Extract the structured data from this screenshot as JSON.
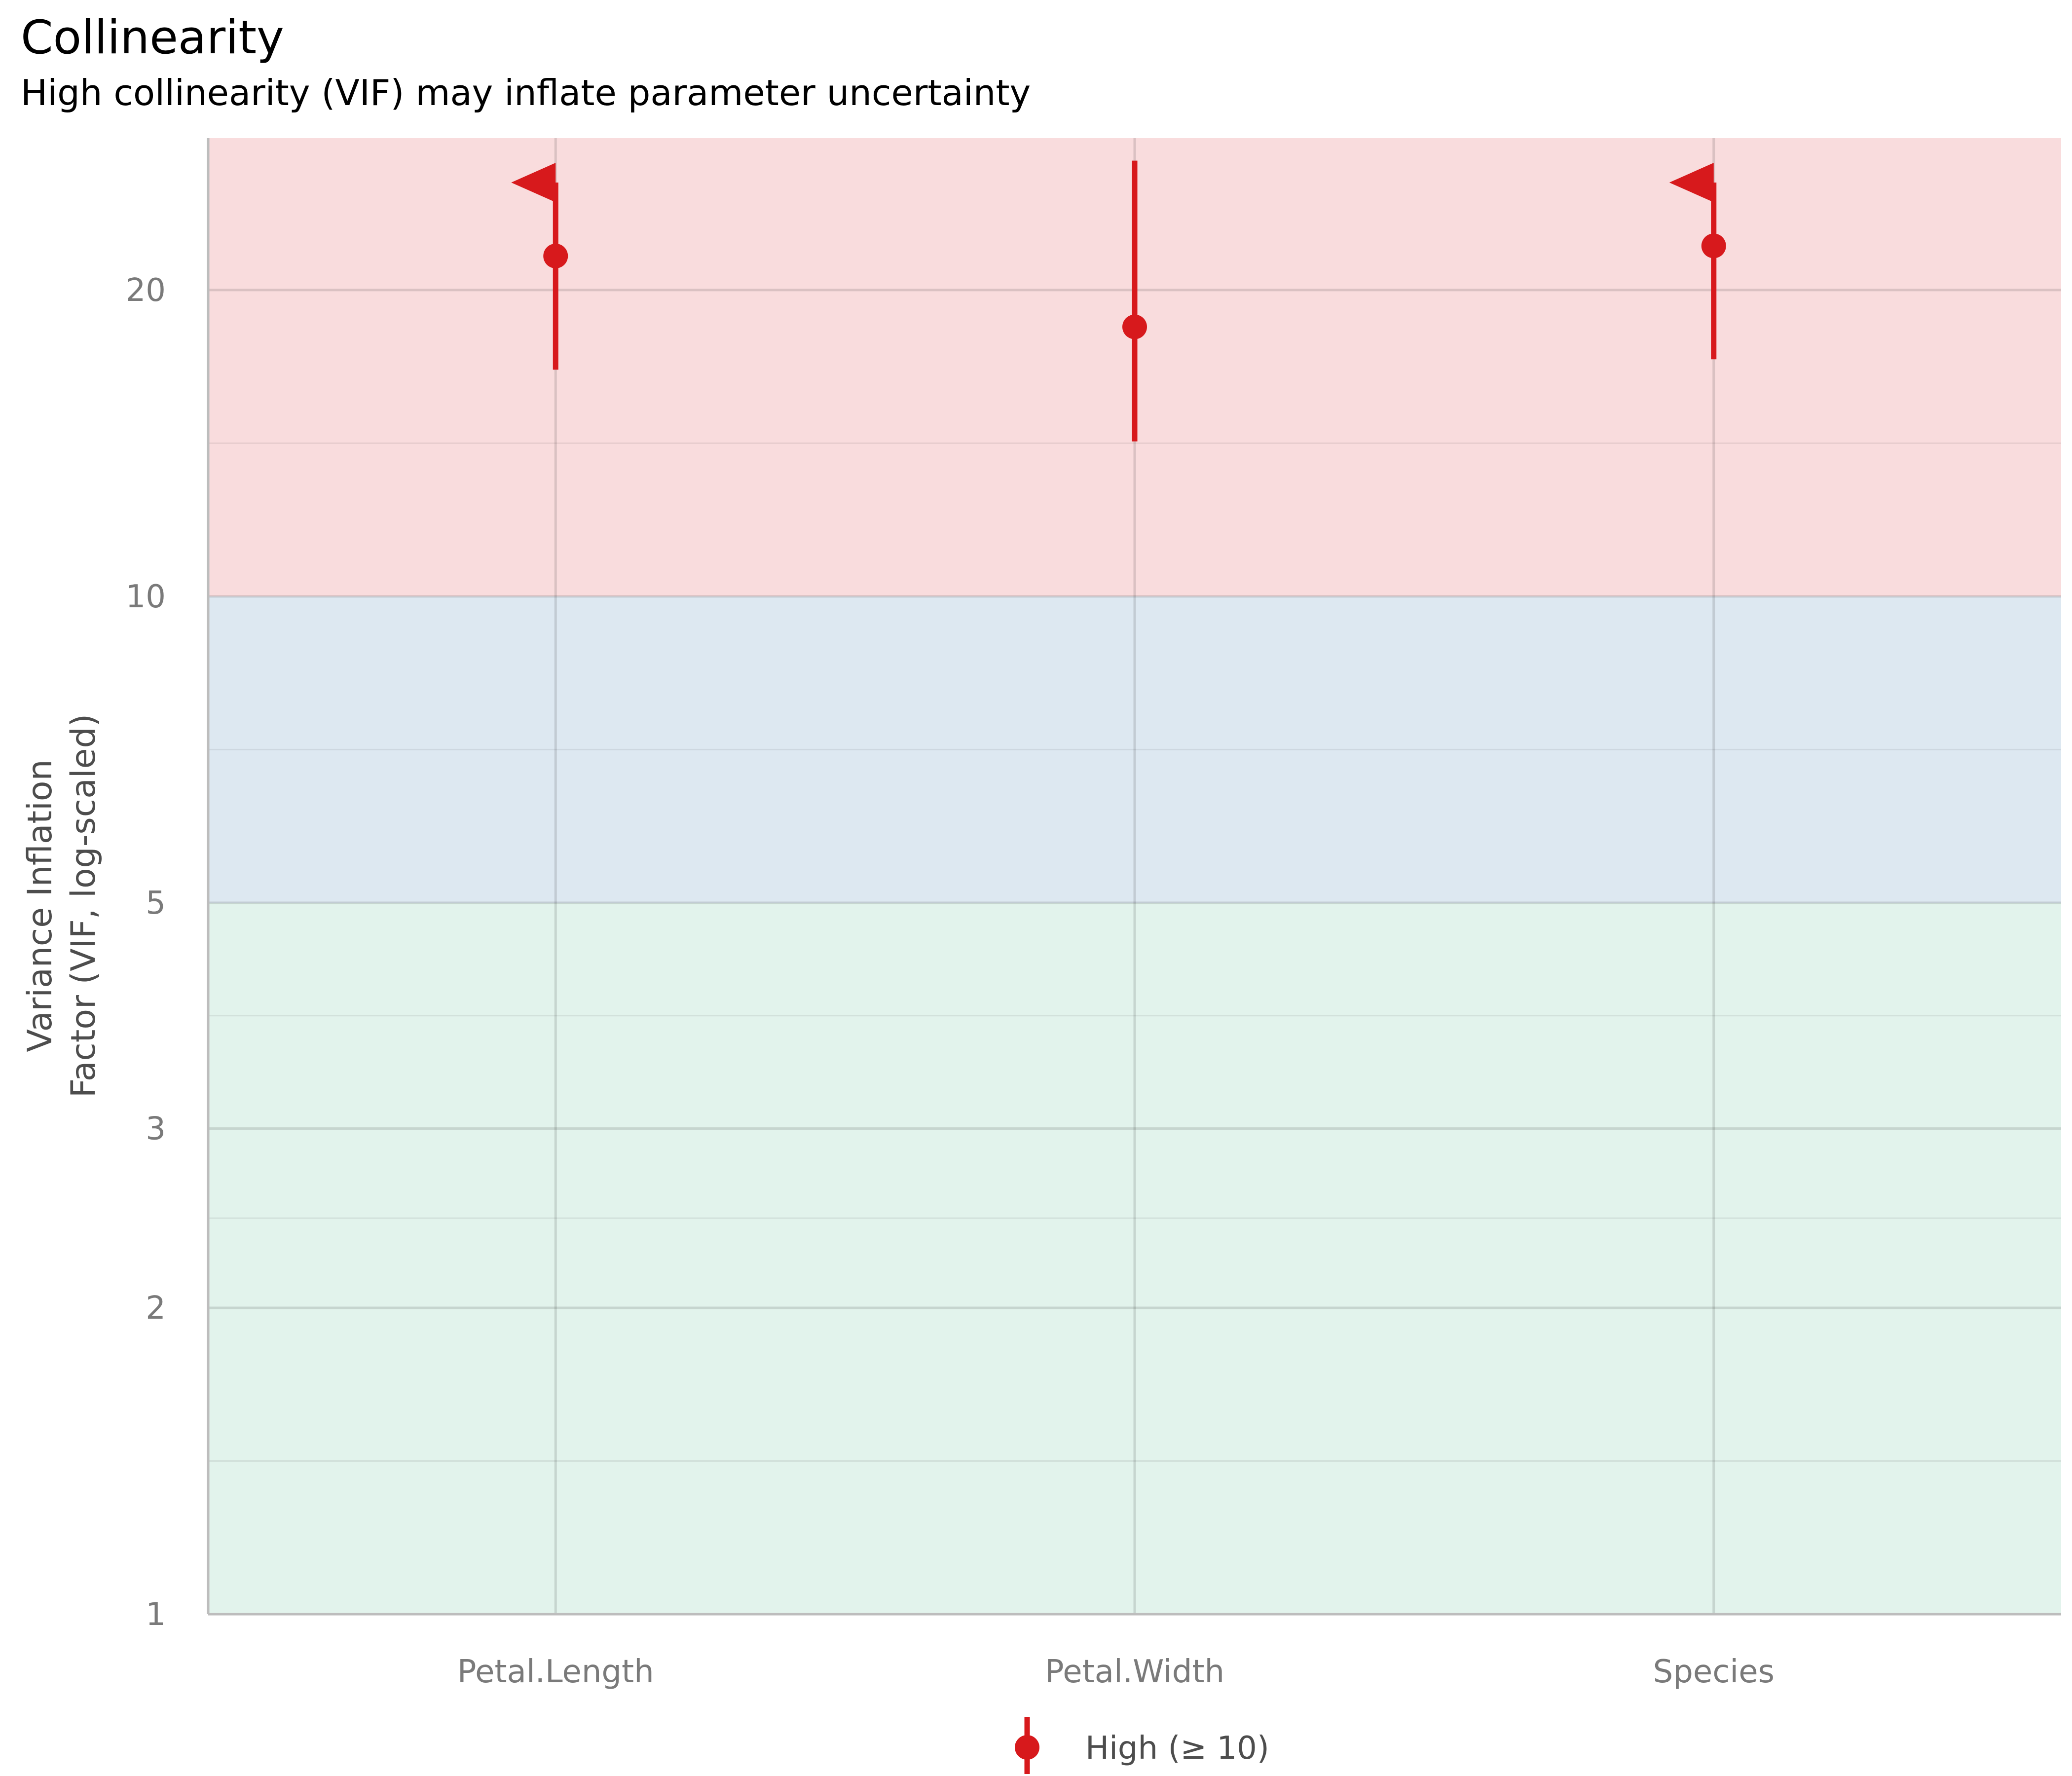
{
  "header": {
    "title": "Collinearity",
    "subtitle": "High collinearity (VIF) may inflate parameter uncertainty"
  },
  "chart_data": {
    "type": "scatter",
    "title": "Collinearity",
    "subtitle": "High collinearity (VIF) may inflate parameter uncertainty",
    "xlabel": "",
    "ylabel_lines": [
      "Variance Inflation",
      "Factor (VIF, log-scaled)"
    ],
    "y_scale": "log10",
    "ylim": [
      1,
      28.2
    ],
    "y_ticks": [
      1,
      2,
      3,
      5,
      10,
      20
    ],
    "y_tick_labels": [
      "1",
      "2",
      "3",
      "5",
      "10",
      "20"
    ],
    "grid": true,
    "categories": [
      "Petal.Length",
      "Petal.Width",
      "Species"
    ],
    "series": [
      {
        "name": "High (≥ 10)",
        "color": "#d7191c",
        "points": [
          {
            "x": "Petal.Length",
            "vif": 21.6,
            "ci_low": 16.7,
            "ci_high": 28.2,
            "ci_high_truncated": true
          },
          {
            "x": "Petal.Width",
            "vif": 18.4,
            "ci_low": 14.2,
            "ci_high": 26.8,
            "ci_high_truncated": false
          },
          {
            "x": "Species",
            "vif": 22.1,
            "ci_low": 17.1,
            "ci_high": 28.2,
            "ci_high_truncated": true
          }
        ]
      }
    ],
    "bands": [
      {
        "from": 1,
        "to": 5,
        "color": "#e2f3ec"
      },
      {
        "from": 5,
        "to": 10,
        "color": "#dde8f1"
      },
      {
        "from": 10,
        "to": 28.2,
        "color": "#f9dcdd"
      }
    ],
    "legend": {
      "position": "bottom",
      "entries": [
        "High (≥ 10)"
      ]
    }
  }
}
